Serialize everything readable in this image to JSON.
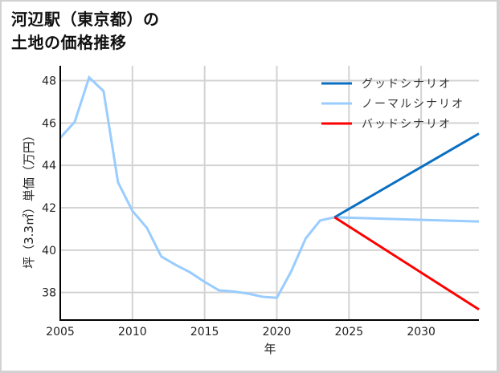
{
  "title_lines": [
    "河辺駅（東京都）の",
    "土地の価格推移"
  ],
  "colors": {
    "good": "#0a6fc2",
    "normal": "#99ccff",
    "bad": "#ff0000",
    "grid": "#d3d3d3",
    "axis": "#000000",
    "border": "#d2d2d2"
  },
  "chart_data": {
    "type": "line",
    "title": "河辺駅（東京都）の土地の価格推移",
    "xlabel": "年",
    "ylabel": "坪（3.3㎡）単価（万円）",
    "xlim": [
      2005,
      2034
    ],
    "ylim": [
      36.7,
      48.7
    ],
    "grid": true,
    "legend_position": "upper right",
    "x_ticks": [
      2005,
      2010,
      2015,
      2020,
      2025,
      2030
    ],
    "y_ticks": [
      38,
      40,
      42,
      44,
      46,
      48
    ],
    "series": [
      {
        "name": "ノーマルシナリオ",
        "color": "#99ccff",
        "x": [
          2005,
          2006,
          2007,
          2008,
          2009,
          2010,
          2011,
          2012,
          2013,
          2014,
          2015,
          2016,
          2017,
          2018,
          2019,
          2020,
          2021,
          2022,
          2023,
          2024,
          2034
        ],
        "values": [
          45.3,
          46.05,
          48.15,
          47.5,
          43.2,
          41.85,
          41.05,
          39.7,
          39.3,
          38.95,
          38.5,
          38.1,
          38.05,
          37.95,
          37.8,
          37.75,
          39.0,
          40.55,
          41.4,
          41.55,
          41.35
        ]
      },
      {
        "name": "グッドシナリオ",
        "color": "#0a6fc2",
        "x": [
          2024,
          2034
        ],
        "values": [
          41.55,
          45.5
        ]
      },
      {
        "name": "バッドシナリオ",
        "color": "#ff0000",
        "x": [
          2024,
          2034
        ],
        "values": [
          41.55,
          37.2
        ]
      }
    ]
  },
  "legend": [
    {
      "label": "グッドシナリオ",
      "color": "#0a6fc2"
    },
    {
      "label": "ノーマルシナリオ",
      "color": "#99ccff"
    },
    {
      "label": "バッドシナリオ",
      "color": "#ff0000"
    }
  ]
}
